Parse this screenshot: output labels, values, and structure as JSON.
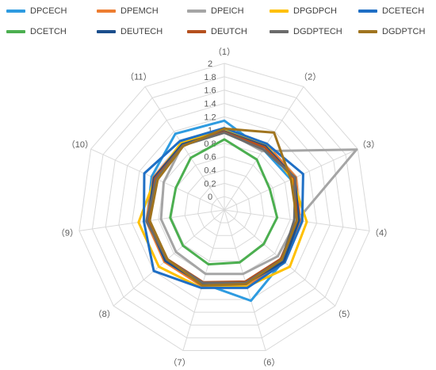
{
  "chart_data": {
    "type": "radar",
    "title": "",
    "axes": [
      "（1）",
      "（2）",
      "（3）",
      "（4）",
      "（5）",
      "（6）",
      "（7）",
      "（8）",
      "（9）",
      "（10）",
      "（11）"
    ],
    "tick_labels": [
      "0",
      "0.2",
      "0.4",
      "0.6",
      "0.8",
      "1",
      "1.2",
      "1.4",
      "1.6",
      "1.8",
      "2"
    ],
    "rmin": -0.2,
    "rmax": 2,
    "grid": true,
    "legend_position": "top",
    "series": [
      {
        "name": "DPCECH",
        "color": "#2E9BE0",
        "values": [
          1.14,
          0.88,
          0.9,
          0.95,
          0.97,
          1.22,
          0.95,
          0.95,
          0.97,
          1.0,
          1.16
        ]
      },
      {
        "name": "DPEMCH",
        "color": "#ED7D31",
        "values": [
          0.99,
          0.97,
          0.98,
          0.95,
          0.98,
          1.0,
          0.99,
          0.99,
          0.98,
          0.97,
          0.98
        ]
      },
      {
        "name": "DPEICH",
        "color": "#A5A5A5",
        "values": [
          0.99,
          0.85,
          1.98,
          0.9,
          0.86,
          0.8,
          0.8,
          0.76,
          0.76,
          0.8,
          0.96
        ]
      },
      {
        "name": "DPGDPCH",
        "color": "#FFC000",
        "values": [
          1.0,
          0.96,
          0.92,
          1.05,
          1.1,
          1.0,
          1.02,
          1.1,
          1.1,
          0.94,
          1.0
        ]
      },
      {
        "name": "DCETECH",
        "color": "#1F6FC5",
        "values": [
          1.03,
          0.98,
          1.1,
          0.98,
          1.0,
          1.02,
          1.02,
          1.2,
          1.02,
          1.12,
          1.03
        ]
      },
      {
        "name": "DCETCH",
        "color": "#4CAF50",
        "values": [
          0.86,
          0.7,
          0.55,
          0.6,
          0.58,
          0.62,
          0.65,
          0.62,
          0.62,
          0.6,
          0.73
        ]
      },
      {
        "name": "DEUTECH",
        "color": "#1B4E8C",
        "values": [
          0.98,
          0.94,
          0.96,
          0.93,
          0.98,
          0.95,
          0.96,
          0.97,
          0.96,
          0.96,
          0.97
        ]
      },
      {
        "name": "DEUTCH",
        "color": "#B5501E",
        "values": [
          0.97,
          0.92,
          0.95,
          0.9,
          0.92,
          0.92,
          0.93,
          0.93,
          0.94,
          0.94,
          0.95
        ]
      },
      {
        "name": "DGDPTECH",
        "color": "#6B6B6B",
        "values": [
          0.96,
          0.88,
          0.97,
          0.86,
          0.94,
          0.94,
          0.94,
          0.94,
          0.98,
          0.92,
          0.95
        ]
      },
      {
        "name": "DGDPTCH",
        "color": "#A0741F",
        "values": [
          1.02,
          1.18,
          0.9,
          0.9,
          0.94,
          0.96,
          0.98,
          0.93,
          0.93,
          0.9,
          0.94
        ]
      }
    ]
  }
}
